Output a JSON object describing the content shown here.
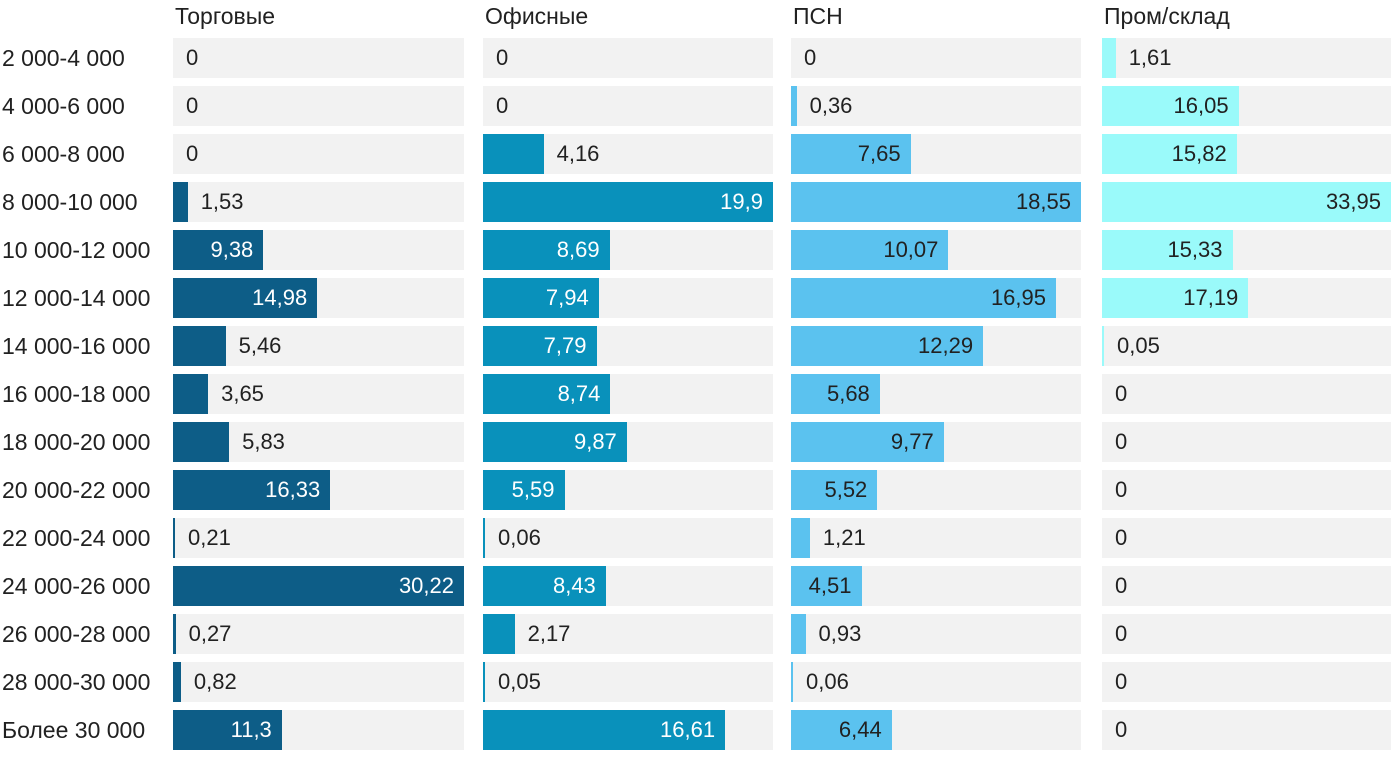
{
  "chart_data": {
    "type": "bar",
    "orientation": "horizontal",
    "title": "",
    "legend_position": "top-column-headers",
    "grid": false,
    "track_color": "#f2f2f2",
    "text_color": "#212121",
    "categories": [
      "2 000-4 000",
      "4 000-6 000",
      "6 000-8 000",
      "8 000-10 000",
      "10 000-12 000",
      "12 000-14 000",
      "14 000-16 000",
      "16 000-18 000",
      "18 000-20 000",
      "20 000-22 000",
      "22 000-24 000",
      "24 000-26 000",
      "26 000-28 000",
      "28 000-30 000",
      "Более 30 000"
    ],
    "series": [
      {
        "name": "Торговые",
        "color": "#0d5d87",
        "inside_label_color": "#ffffff",
        "scale_max": 30.22,
        "values": [
          0,
          0,
          0,
          1.53,
          9.38,
          14.98,
          5.46,
          3.65,
          5.83,
          16.33,
          0.21,
          30.22,
          0.27,
          0.82,
          11.3
        ],
        "labels": [
          "0",
          "0",
          "0",
          "1,53",
          "9,38",
          "14,98",
          "5,46",
          "3,65",
          "5,83",
          "16,33",
          "0,21",
          "30,22",
          "0,27",
          "0,82",
          "11,3"
        ]
      },
      {
        "name": "Офисные",
        "color": "#0991bb",
        "inside_label_color": "#ffffff",
        "scale_max": 19.9,
        "values": [
          0,
          0,
          4.16,
          19.9,
          8.69,
          7.94,
          7.79,
          8.74,
          9.87,
          5.59,
          0.06,
          8.43,
          2.17,
          0.05,
          16.61
        ],
        "labels": [
          "0",
          "0",
          "4,16",
          "19,9",
          "8,69",
          "7,94",
          "7,79",
          "8,74",
          "9,87",
          "5,59",
          "0,06",
          "8,43",
          "2,17",
          "0,05",
          "16,61"
        ]
      },
      {
        "name": "ПСН",
        "color": "#5bc2ef",
        "inside_label_color": "#212121",
        "scale_max": 18.55,
        "values": [
          0,
          0.36,
          7.65,
          18.55,
          10.07,
          16.95,
          12.29,
          5.68,
          9.77,
          5.52,
          1.21,
          4.51,
          0.93,
          0.06,
          6.44
        ],
        "labels": [
          "0",
          "0,36",
          "7,65",
          "18,55",
          "10,07",
          "16,95",
          "12,29",
          "5,68",
          "9,77",
          "5,52",
          "1,21",
          "4,51",
          "0,93",
          "0,06",
          "6,44"
        ]
      },
      {
        "name": "Пром/склад",
        "color": "#9afafa",
        "inside_label_color": "#212121",
        "scale_max": 33.95,
        "values": [
          1.61,
          16.05,
          15.82,
          33.95,
          15.33,
          17.19,
          0.05,
          0,
          0,
          0,
          0,
          0,
          0,
          0,
          0
        ],
        "labels": [
          "1,61",
          "16,05",
          "15,82",
          "33,95",
          "15,33",
          "17,19",
          "0,05",
          "0",
          "0",
          "0",
          "0",
          "0",
          "0",
          "0",
          "0"
        ]
      }
    ]
  }
}
